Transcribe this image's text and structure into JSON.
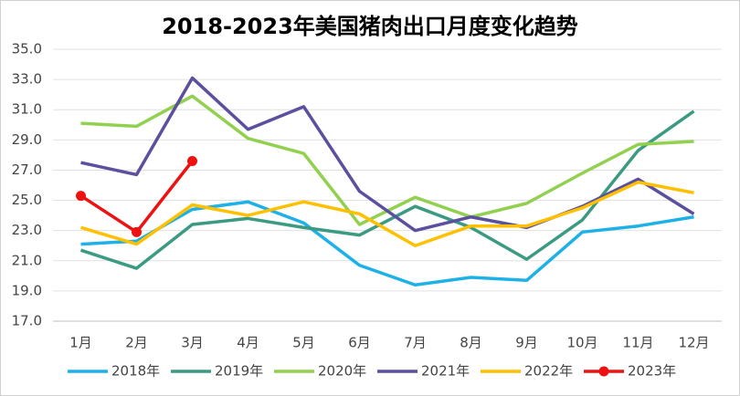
{
  "chart_data": {
    "type": "line",
    "title": "2018-2023年美国猪肉出口月度变化趋势",
    "categories": [
      "1月",
      "2月",
      "3月",
      "4月",
      "5月",
      "6月",
      "7月",
      "8月",
      "9月",
      "10月",
      "11月",
      "12月"
    ],
    "series": [
      {
        "name": "2018年",
        "color": "#1eb1e8",
        "values": [
          22.1,
          22.3,
          24.4,
          24.9,
          23.5,
          20.7,
          19.4,
          19.9,
          19.7,
          22.9,
          23.3,
          23.9
        ]
      },
      {
        "name": "2019年",
        "color": "#3a9a82",
        "values": [
          21.7,
          20.5,
          23.4,
          23.8,
          23.2,
          22.7,
          24.6,
          23.2,
          21.1,
          23.7,
          28.3,
          30.9
        ]
      },
      {
        "name": "2020年",
        "color": "#92d050",
        "values": [
          30.1,
          29.9,
          31.9,
          29.1,
          28.1,
          23.4,
          25.2,
          23.9,
          24.8,
          26.8,
          28.7,
          28.9
        ]
      },
      {
        "name": "2021年",
        "color": "#5b509e",
        "values": [
          27.5,
          26.7,
          33.1,
          29.7,
          31.2,
          25.6,
          23.0,
          23.9,
          23.2,
          24.6,
          26.4,
          24.1
        ]
      },
      {
        "name": "2022年",
        "color": "#ffc000",
        "values": [
          23.2,
          22.1,
          24.7,
          24.0,
          24.9,
          24.1,
          22.0,
          23.3,
          23.3,
          24.5,
          26.2,
          25.5
        ]
      },
      {
        "name": "2023年",
        "color": "#ee1111",
        "markers": true,
        "values": [
          25.3,
          22.9,
          27.6,
          null,
          null,
          null,
          null,
          null,
          null,
          null,
          null,
          null
        ]
      }
    ],
    "ylim": [
      17,
      35
    ],
    "yticks": [
      {
        "value": 17,
        "label": "17.0"
      },
      {
        "value": 19,
        "label": "19.0"
      },
      {
        "value": 21,
        "label": "21.0"
      },
      {
        "value": 23,
        "label": "23.0"
      },
      {
        "value": 25,
        "label": "25.0"
      },
      {
        "value": 27,
        "label": "27.0"
      },
      {
        "value": 29,
        "label": "29.0"
      },
      {
        "value": 31,
        "label": "31.0"
      },
      {
        "value": 33,
        "label": "33.0"
      },
      {
        "value": 35,
        "label": "35.0"
      }
    ],
    "grid": true,
    "legend": "bottom"
  }
}
